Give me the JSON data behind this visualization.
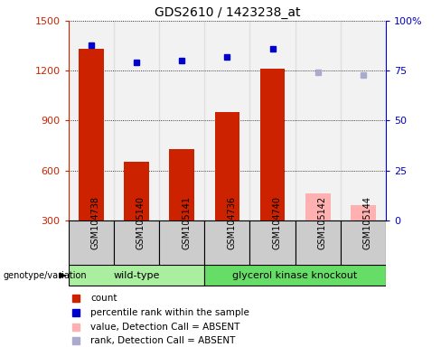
{
  "title": "GDS2610 / 1423238_at",
  "samples": [
    "GSM104738",
    "GSM105140",
    "GSM105141",
    "GSM104736",
    "GSM104740",
    "GSM105142",
    "GSM105144"
  ],
  "count_values": [
    1330,
    650,
    730,
    950,
    1210,
    460,
    390
  ],
  "count_absent": [
    false,
    false,
    false,
    false,
    false,
    true,
    true
  ],
  "rank_values": [
    88,
    79,
    80,
    82,
    86,
    74,
    73
  ],
  "rank_absent": [
    false,
    false,
    false,
    false,
    false,
    true,
    true
  ],
  "group_wildtype_count": 3,
  "group_ko_count": 4,
  "group_wildtype_label": "wild-type",
  "group_ko_label": "glycerol kinase knockout",
  "group_wildtype_color": "#AAEEA0",
  "group_ko_color": "#66DD66",
  "ylim_left": [
    300,
    1500
  ],
  "ylim_right": [
    0,
    100
  ],
  "yticks_left": [
    300,
    600,
    900,
    1200,
    1500
  ],
  "yticks_right": [
    0,
    25,
    50,
    75,
    100
  ],
  "bar_color_present": "#CC2200",
  "bar_color_absent": "#FFB0B0",
  "dot_color_present": "#0000CC",
  "dot_color_absent": "#AAAACC",
  "sample_bg_color": "#CCCCCC",
  "plot_bg_color": "#FFFFFF",
  "genotype_label": "genotype/variation",
  "legend_items": [
    {
      "label": "count",
      "color": "#CC2200"
    },
    {
      "label": "percentile rank within the sample",
      "color": "#0000CC"
    },
    {
      "label": "value, Detection Call = ABSENT",
      "color": "#FFB0B0"
    },
    {
      "label": "rank, Detection Call = ABSENT",
      "color": "#AAAACC"
    }
  ]
}
